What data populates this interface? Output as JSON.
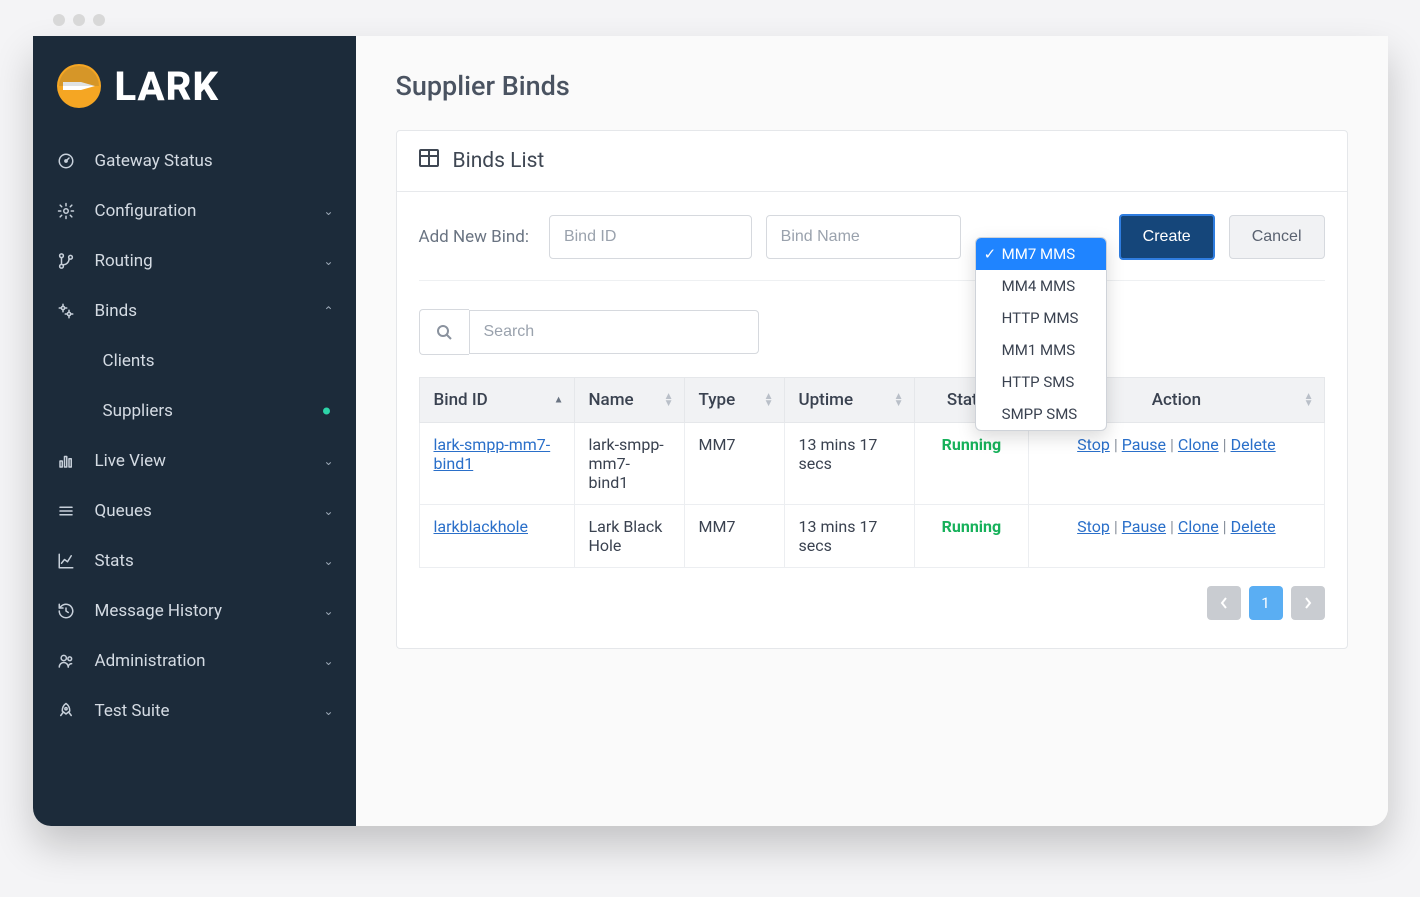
{
  "logo_text": "LARK",
  "sidebar": {
    "items": [
      {
        "label": "Gateway Status",
        "icon": "gauge",
        "expandable": false
      },
      {
        "label": "Configuration",
        "icon": "gear",
        "expandable": true,
        "expanded": false
      },
      {
        "label": "Routing",
        "icon": "branch",
        "expandable": true,
        "expanded": false
      },
      {
        "label": "Binds",
        "icon": "gears",
        "expandable": true,
        "expanded": true,
        "children": [
          {
            "label": "Clients",
            "active_dot": false
          },
          {
            "label": "Suppliers",
            "active_dot": true
          }
        ]
      },
      {
        "label": "Live View",
        "icon": "bars",
        "expandable": true,
        "expanded": false
      },
      {
        "label": "Queues",
        "icon": "menu",
        "expandable": true,
        "expanded": false
      },
      {
        "label": "Stats",
        "icon": "chart",
        "expandable": true,
        "expanded": false
      },
      {
        "label": "Message History",
        "icon": "history",
        "expandable": true,
        "expanded": false
      },
      {
        "label": "Administration",
        "icon": "users",
        "expandable": true,
        "expanded": false
      },
      {
        "label": "Test Suite",
        "icon": "rocket",
        "expandable": true,
        "expanded": false
      }
    ]
  },
  "page_title": "Supplier Binds",
  "card_title": "Binds List",
  "add_bind": {
    "label": "Add New Bind:",
    "bind_id_placeholder": "Bind ID",
    "bind_name_placeholder": "Bind Name",
    "dropdown": {
      "selected": "MM7 MMS",
      "options": [
        "MM7 MMS",
        "MM4 MMS",
        "HTTP MMS",
        "MM1 MMS",
        "HTTP SMS",
        "SMPP SMS"
      ]
    },
    "create_label": "Create",
    "cancel_label": "Cancel"
  },
  "search_placeholder": "Search",
  "table": {
    "columns": [
      "Bind ID",
      "Name",
      "Type",
      "Uptime",
      "Status",
      "Action"
    ],
    "rows": [
      {
        "bind_id": "lark-smpp-mm7-bind1",
        "name": "lark-smpp-mm7-bind1",
        "type": "MM7",
        "uptime": "13 mins 17 secs",
        "status": "Running",
        "actions": [
          "Stop",
          "Pause",
          "Clone",
          "Delete"
        ]
      },
      {
        "bind_id": "larkblackhole",
        "name": "Lark Black Hole",
        "type": "MM7",
        "uptime": "13 mins 17 secs",
        "status": "Running",
        "actions": [
          "Stop",
          "Pause",
          "Clone",
          "Delete"
        ]
      }
    ]
  },
  "pagination": {
    "current": "1"
  },
  "colors": {
    "sidebar_bg": "#1c2b3a",
    "accent_blue": "#2a6fc9",
    "status_green": "#17b15b",
    "primary_btn": "#15467a",
    "dropdown_selected": "#1f84ff",
    "page_active": "#5aaef3",
    "logo_orange": "#f5a623"
  }
}
